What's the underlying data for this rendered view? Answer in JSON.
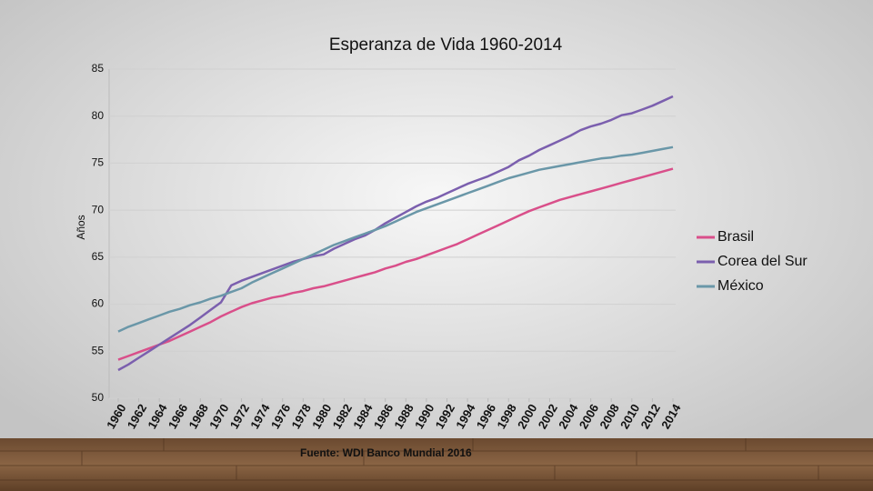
{
  "chart_data": {
    "type": "line",
    "title": "Esperanza de Vida 1960-2014",
    "y_label": "Años",
    "source": "Fuente: WDI Banco Mundial 2016",
    "x": [
      1960,
      1961,
      1962,
      1963,
      1964,
      1965,
      1966,
      1967,
      1968,
      1969,
      1970,
      1971,
      1972,
      1973,
      1974,
      1975,
      1976,
      1977,
      1978,
      1979,
      1980,
      1981,
      1982,
      1983,
      1984,
      1985,
      1986,
      1987,
      1988,
      1989,
      1990,
      1991,
      1992,
      1993,
      1994,
      1995,
      1996,
      1997,
      1998,
      1999,
      2000,
      2001,
      2002,
      2003,
      2004,
      2005,
      2006,
      2007,
      2008,
      2009,
      2010,
      2011,
      2012,
      2013,
      2014
    ],
    "xlim": [
      1960,
      2014
    ],
    "xticks": [
      1960,
      1962,
      1964,
      1966,
      1968,
      1970,
      1972,
      1974,
      1976,
      1978,
      1980,
      1982,
      1984,
      1986,
      1988,
      1990,
      1992,
      1994,
      1996,
      1998,
      2000,
      2002,
      2004,
      2006,
      2008,
      2010,
      2012,
      2014
    ],
    "ylim": [
      50,
      85
    ],
    "yticks": [
      50,
      55,
      60,
      65,
      70,
      75,
      80,
      85
    ],
    "grid": true,
    "legend": "right",
    "series": [
      {
        "name": "Brasil",
        "color": "#d94f8a",
        "values": [
          54.1,
          54.5,
          54.9,
          55.3,
          55.7,
          56.1,
          56.6,
          57.1,
          57.6,
          58.1,
          58.7,
          59.2,
          59.7,
          60.1,
          60.4,
          60.7,
          60.9,
          61.2,
          61.4,
          61.7,
          61.9,
          62.2,
          62.5,
          62.8,
          63.1,
          63.4,
          63.8,
          64.1,
          64.5,
          64.8,
          65.2,
          65.6,
          66.0,
          66.4,
          66.9,
          67.4,
          67.9,
          68.4,
          68.9,
          69.4,
          69.9,
          70.3,
          70.7,
          71.1,
          71.4,
          71.7,
          72.0,
          72.3,
          72.6,
          72.9,
          73.2,
          73.5,
          73.8,
          74.1,
          74.4
        ]
      },
      {
        "name": "Corea del Sur",
        "color": "#7b5fae",
        "values": [
          53.0,
          53.6,
          54.3,
          55.0,
          55.7,
          56.4,
          57.1,
          57.8,
          58.6,
          59.4,
          60.2,
          62.0,
          62.5,
          62.9,
          63.3,
          63.7,
          64.1,
          64.5,
          64.8,
          65.1,
          65.3,
          65.9,
          66.4,
          66.9,
          67.3,
          67.9,
          68.6,
          69.2,
          69.8,
          70.4,
          70.9,
          71.3,
          71.8,
          72.3,
          72.8,
          73.2,
          73.6,
          74.1,
          74.6,
          75.3,
          75.8,
          76.4,
          76.9,
          77.4,
          77.9,
          78.5,
          78.9,
          79.2,
          79.6,
          80.1,
          80.3,
          80.7,
          81.1,
          81.6,
          82.1
        ]
      },
      {
        "name": "México",
        "color": "#6a97a8",
        "values": [
          57.1,
          57.6,
          58.0,
          58.4,
          58.8,
          59.2,
          59.5,
          59.9,
          60.2,
          60.6,
          60.9,
          61.3,
          61.7,
          62.3,
          62.8,
          63.3,
          63.8,
          64.3,
          64.8,
          65.3,
          65.8,
          66.3,
          66.7,
          67.1,
          67.5,
          67.9,
          68.3,
          68.8,
          69.3,
          69.8,
          70.2,
          70.6,
          71.0,
          71.4,
          71.8,
          72.2,
          72.6,
          73.0,
          73.4,
          73.7,
          74.0,
          74.3,
          74.5,
          74.7,
          74.9,
          75.1,
          75.3,
          75.5,
          75.6,
          75.8,
          75.9,
          76.1,
          76.3,
          76.5,
          76.7
        ]
      }
    ]
  }
}
